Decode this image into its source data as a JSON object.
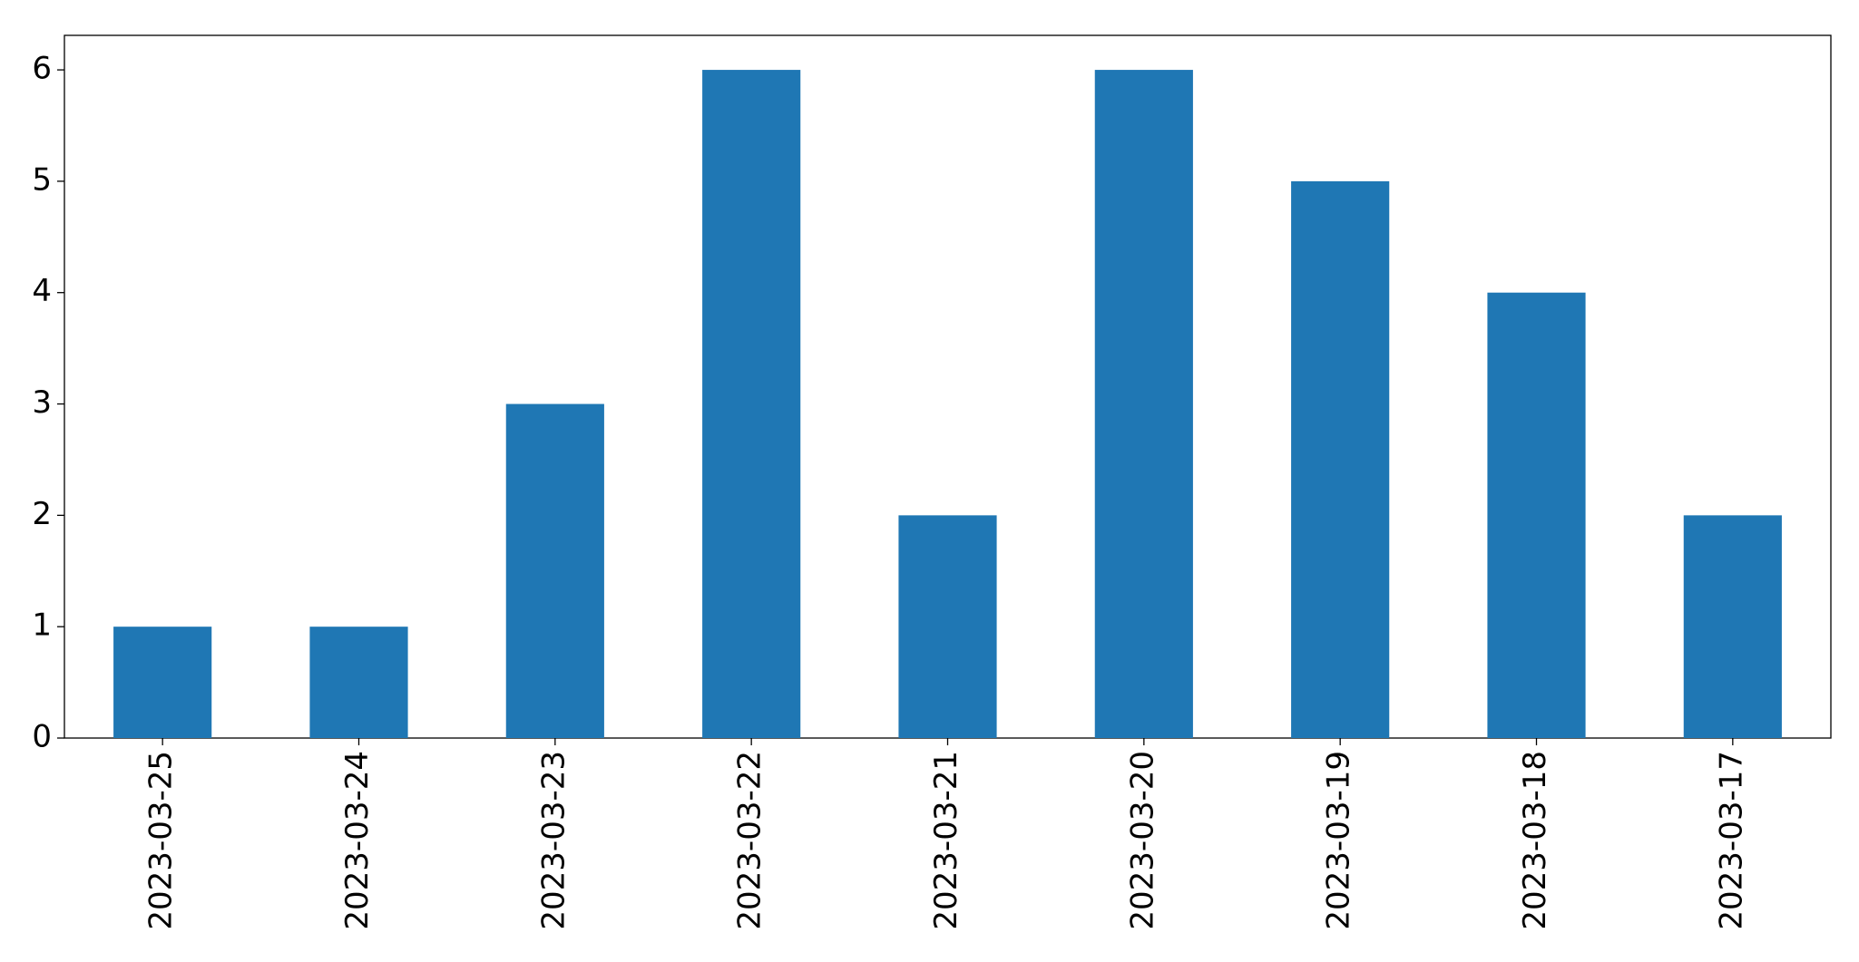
{
  "chart_data": {
    "type": "bar",
    "categories": [
      "2023-03-25",
      "2023-03-24",
      "2023-03-23",
      "2023-03-22",
      "2023-03-21",
      "2023-03-20",
      "2023-03-19",
      "2023-03-18",
      "2023-03-17"
    ],
    "values": [
      1,
      1,
      3,
      6,
      2,
      6,
      5,
      4,
      2
    ],
    "color": "#1f77b4",
    "ylim": [
      0,
      6.31
    ],
    "yticks": [
      0,
      1,
      2,
      3,
      4,
      5,
      6
    ],
    "grid": false
  }
}
